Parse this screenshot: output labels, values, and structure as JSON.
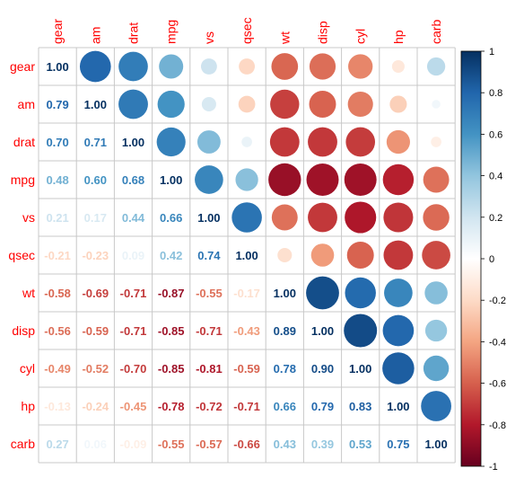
{
  "chart_data": {
    "type": "heatmap",
    "variables": [
      "gear",
      "am",
      "drat",
      "mpg",
      "vs",
      "qsec",
      "wt",
      "disp",
      "cyl",
      "hp",
      "carb"
    ],
    "lower_labels": [
      [],
      [
        "0.79"
      ],
      [
        "0.70",
        "0.71"
      ],
      [
        "0.48",
        "0.60",
        "0.68"
      ],
      [
        "0.21",
        "0.17",
        "0.44",
        "0.66"
      ],
      [
        "-0.21",
        "-0.23",
        "0.09",
        "0.42",
        "0.74"
      ],
      [
        "-0.58",
        "-0.69",
        "-0.71",
        "-0.87",
        "-0.55",
        "-0.17"
      ],
      [
        "-0.56",
        "-0.59",
        "-0.71",
        "-0.85",
        "-0.71",
        "-0.43",
        "0.89"
      ],
      [
        "-0.49",
        "-0.52",
        "-0.70",
        "-0.85",
        "-0.81",
        "-0.59",
        "0.78",
        "0.90"
      ],
      [
        "-0.13",
        "-0.24",
        "-0.45",
        "-0.78",
        "-0.72",
        "-0.71",
        "0.66",
        "0.79",
        "0.83"
      ],
      [
        "0.27",
        "0.06",
        "-0.09",
        "-0.55",
        "-0.57",
        "-0.66",
        "0.43",
        "0.39",
        "0.53",
        "0.75"
      ]
    ],
    "diagonal_label": "1.00",
    "upper_method": "circle",
    "colorbar_ticks": [
      "1",
      "0.8",
      "0.6",
      "0.4",
      "0.2",
      "0",
      "-0.2",
      "-0.4",
      "-0.6",
      "-0.8",
      "-1"
    ],
    "colorbar_range": [
      -1,
      1
    ],
    "colors": {
      "negative_end": "#67001f",
      "positive_end": "#053061",
      "label_color": "#ff0000",
      "grid_color": "#c8c8c8"
    }
  }
}
